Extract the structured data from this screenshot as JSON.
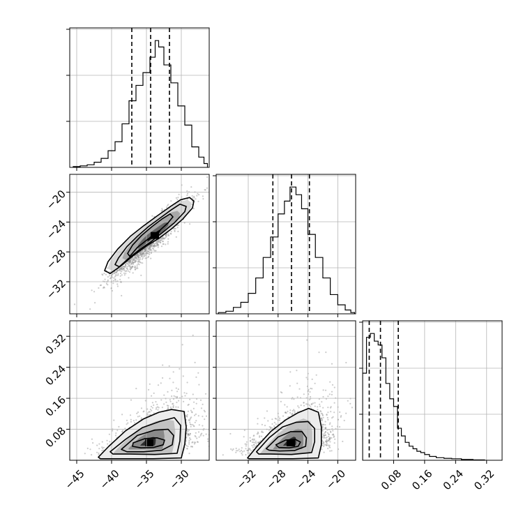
{
  "chart_data": {
    "type": "corner",
    "title": "",
    "grid": true,
    "parameters": [
      {
        "xlim": [
          -46,
          -26
        ],
        "ticks": [
          -45,
          -40,
          -35,
          -30
        ],
        "tick_labels": [
          "−45",
          "−40",
          "−35",
          "−30"
        ],
        "quantiles": [
          -37.1,
          -34.4,
          -31.7
        ],
        "hist": [
          {
            "x": -45.0,
            "count": 0.006
          },
          {
            "x": -44.0,
            "count": 0.012
          },
          {
            "x": -43.0,
            "count": 0.02
          },
          {
            "x": -42.0,
            "count": 0.04
          },
          {
            "x": -41.0,
            "count": 0.07
          },
          {
            "x": -40.0,
            "count": 0.13
          },
          {
            "x": -39.0,
            "count": 0.2
          },
          {
            "x": -38.0,
            "count": 0.34
          },
          {
            "x": -37.0,
            "count": 0.52
          },
          {
            "x": -36.0,
            "count": 0.64
          },
          {
            "x": -35.0,
            "count": 0.74
          },
          {
            "x": -34.0,
            "count": 0.86
          },
          {
            "x": -33.5,
            "count": 0.99
          },
          {
            "x": -33.0,
            "count": 0.94
          },
          {
            "x": -32.0,
            "count": 0.8
          },
          {
            "x": -31.0,
            "count": 0.66
          },
          {
            "x": -30.0,
            "count": 0.48
          },
          {
            "x": -29.0,
            "count": 0.33
          },
          {
            "x": -28.0,
            "count": 0.16
          },
          {
            "x": -27.0,
            "count": 0.08
          },
          {
            "x": -26.5,
            "count": 0.03
          }
        ]
      },
      {
        "xlim": [
          -36.3,
          -17.6
        ],
        "ticks": [
          -32,
          -28,
          -24,
          -20
        ],
        "tick_labels": [
          "−32",
          "−28",
          "−24",
          "−20"
        ],
        "quantiles": [
          -28.7,
          -26.2,
          -23.8
        ],
        "hist": [
          {
            "x": -35.5,
            "count": 0.01
          },
          {
            "x": -34.5,
            "count": 0.02
          },
          {
            "x": -33.5,
            "count": 0.05
          },
          {
            "x": -32.5,
            "count": 0.09
          },
          {
            "x": -31.5,
            "count": 0.16
          },
          {
            "x": -30.5,
            "count": 0.28
          },
          {
            "x": -29.5,
            "count": 0.44
          },
          {
            "x": -28.5,
            "count": 0.6
          },
          {
            "x": -27.5,
            "count": 0.78
          },
          {
            "x": -26.8,
            "count": 0.88
          },
          {
            "x": -26.0,
            "count": 0.99
          },
          {
            "x": -25.2,
            "count": 0.93
          },
          {
            "x": -24.5,
            "count": 0.82
          },
          {
            "x": -23.5,
            "count": 0.62
          },
          {
            "x": -22.5,
            "count": 0.44
          },
          {
            "x": -21.5,
            "count": 0.28
          },
          {
            "x": -20.5,
            "count": 0.15
          },
          {
            "x": -19.5,
            "count": 0.07
          },
          {
            "x": -18.5,
            "count": 0.03
          },
          {
            "x": -18.0,
            "count": 0.01
          }
        ]
      },
      {
        "xlim": [
          0.0,
          0.36
        ],
        "ticks": [
          0.08,
          0.16,
          0.24,
          0.32
        ],
        "tick_labels": [
          "0.08",
          "0.16",
          "0.24",
          "0.32"
        ],
        "quantiles": [
          0.017,
          0.046,
          0.092
        ],
        "hist": [
          {
            "x": 0.005,
            "count": 0.68
          },
          {
            "x": 0.015,
            "count": 0.96
          },
          {
            "x": 0.025,
            "count": 0.99
          },
          {
            "x": 0.035,
            "count": 0.93
          },
          {
            "x": 0.045,
            "count": 0.9
          },
          {
            "x": 0.055,
            "count": 0.8
          },
          {
            "x": 0.065,
            "count": 0.6
          },
          {
            "x": 0.075,
            "count": 0.48
          },
          {
            "x": 0.085,
            "count": 0.42
          },
          {
            "x": 0.095,
            "count": 0.25
          },
          {
            "x": 0.105,
            "count": 0.19
          },
          {
            "x": 0.115,
            "count": 0.14
          },
          {
            "x": 0.125,
            "count": 0.11
          },
          {
            "x": 0.135,
            "count": 0.09
          },
          {
            "x": 0.145,
            "count": 0.07
          },
          {
            "x": 0.155,
            "count": 0.06
          },
          {
            "x": 0.165,
            "count": 0.045
          },
          {
            "x": 0.18,
            "count": 0.03
          },
          {
            "x": 0.2,
            "count": 0.02
          },
          {
            "x": 0.22,
            "count": 0.015
          },
          {
            "x": 0.24,
            "count": 0.012
          },
          {
            "x": 0.27,
            "count": 0.006
          },
          {
            "x": 0.3,
            "count": 0.003
          }
        ]
      }
    ],
    "pairs": [
      {
        "row": 1,
        "col": 0,
        "mean": [
          -34.4,
          -26.2
        ],
        "sd": [
          2.7,
          2.5
        ],
        "rho": 0.92,
        "peak": [
          -33.8,
          -25.8
        ],
        "contours": [
          {
            "level": 0.4,
            "points": [
              [
                -37.4,
                -28.6
              ],
              [
                -36.3,
                -27.4
              ],
              [
                -34.8,
                -26.3
              ],
              [
                -33.3,
                -25.3
              ],
              [
                -31.9,
                -24.1
              ],
              [
                -31.2,
                -23.3
              ],
              [
                -31.6,
                -22.9
              ],
              [
                -32.8,
                -23.6
              ],
              [
                -34.2,
                -24.6
              ],
              [
                -35.7,
                -25.8
              ],
              [
                -37.0,
                -27.1
              ],
              [
                -37.7,
                -28.2
              ]
            ]
          },
          {
            "level": 0.8,
            "points": [
              [
                -38.9,
                -30.0
              ],
              [
                -37.6,
                -28.9
              ],
              [
                -36.0,
                -27.7
              ],
              [
                -34.3,
                -26.6
              ],
              [
                -32.7,
                -25.4
              ],
              [
                -31.0,
                -24.1
              ],
              [
                -29.5,
                -22.6
              ],
              [
                -29.3,
                -21.9
              ],
              [
                -30.2,
                -21.6
              ],
              [
                -31.5,
                -22.4
              ],
              [
                -33.1,
                -23.5
              ],
              [
                -34.7,
                -24.6
              ],
              [
                -36.3,
                -25.9
              ],
              [
                -37.8,
                -27.3
              ],
              [
                -39.0,
                -28.8
              ],
              [
                -39.5,
                -29.7
              ]
            ]
          },
          {
            "level": 1.2,
            "points": [
              [
                -40.2,
                -30.9
              ],
              [
                -38.7,
                -29.9
              ],
              [
                -36.9,
                -28.5
              ],
              [
                -35.0,
                -27.2
              ],
              [
                -33.1,
                -26.1
              ],
              [
                -31.4,
                -24.9
              ],
              [
                -29.8,
                -23.6
              ],
              [
                -28.4,
                -22.1
              ],
              [
                -28.2,
                -21.2
              ],
              [
                -28.8,
                -20.7
              ],
              [
                -30.1,
                -21.0
              ],
              [
                -31.7,
                -22.0
              ],
              [
                -33.5,
                -23.2
              ],
              [
                -35.4,
                -24.5
              ],
              [
                -37.3,
                -25.9
              ],
              [
                -39.1,
                -27.6
              ],
              [
                -40.5,
                -29.3
              ],
              [
                -41.0,
                -30.5
              ]
            ]
          }
        ],
        "ellipses": [
          {
            "k": 1.6,
            "shade": "#d8d8d8"
          },
          {
            "k": 1.1,
            "shade": "#a8a8a8"
          },
          {
            "k": 0.6,
            "shade": "#666666"
          },
          {
            "k": 0.25,
            "shade": "#111111"
          }
        ],
        "xlim": [
          -46,
          -26
        ],
        "ylim": [
          -36.3,
          -17.6
        ],
        "yticks": [
          -32,
          -28,
          -24,
          -20
        ],
        "ytick_labels": [
          "−32",
          "−28",
          "−24",
          "−20"
        ]
      },
      {
        "row": 2,
        "col": 0,
        "mean": [
          -33.8,
          0.05
        ],
        "sd": [
          3.0,
          0.05
        ],
        "rho": 0.45,
        "peak": [
          -34.6,
          0.045
        ],
        "contours": [
          {
            "level": 0.4,
            "points": [
              [
                -36.9,
                0.045
              ],
              [
                -35.2,
                0.056
              ],
              [
                -33.5,
                0.058
              ],
              [
                -32.4,
                0.052
              ],
              [
                -32.6,
                0.04
              ],
              [
                -34.0,
                0.033
              ],
              [
                -35.8,
                0.032
              ],
              [
                -37.0,
                0.036
              ]
            ]
          },
          {
            "level": 0.8,
            "points": [
              [
                -38.6,
                0.028
              ],
              [
                -36.3,
                0.064
              ],
              [
                -33.8,
                0.078
              ],
              [
                -31.9,
                0.08
              ],
              [
                -31.1,
                0.064
              ],
              [
                -31.3,
                0.04
              ],
              [
                -32.8,
                0.026
              ],
              [
                -35.4,
                0.022
              ],
              [
                -37.8,
                0.022
              ]
            ]
          },
          {
            "level": 1.2,
            "points": [
              [
                -40.2,
                0.022
              ],
              [
                -38.0,
                0.054
              ],
              [
                -35.6,
                0.084
              ],
              [
                -33.1,
                0.1
              ],
              [
                -31.0,
                0.11
              ],
              [
                -30.1,
                0.09
              ],
              [
                -30.2,
                0.05
              ],
              [
                -30.6,
                0.018
              ],
              [
                -33.8,
                0.015
              ],
              [
                -37.4,
                0.016
              ],
              [
                -39.8,
                0.016
              ]
            ]
          },
          {
            "level": 1.6,
            "points": [
              [
                -41.9,
                0.008
              ],
              [
                -40.4,
                0.036
              ],
              [
                -38.0,
                0.076
              ],
              [
                -35.4,
                0.107
              ],
              [
                -33.2,
                0.124
              ],
              [
                -31.4,
                0.131
              ],
              [
                -29.6,
                0.126
              ],
              [
                -29.3,
                0.086
              ],
              [
                -29.5,
                0.042
              ],
              [
                -30.0,
                0.006
              ],
              [
                -34.0,
                0.004
              ],
              [
                -38.5,
                0.004
              ],
              [
                -41.6,
                0.004
              ]
            ]
          }
        ],
        "ellipses": [
          {
            "k": 1.7,
            "shade": "#ececec"
          },
          {
            "k": 1.2,
            "shade": "#c2c2c2"
          },
          {
            "k": 0.7,
            "shade": "#8a8a8a"
          },
          {
            "k": 0.3,
            "shade": "#2e2e2e"
          }
        ],
        "xlim": [
          -46,
          -26
        ],
        "ylim": [
          0.0,
          0.36
        ],
        "yticks": [
          0.08,
          0.16,
          0.24,
          0.32
        ],
        "ytick_labels": [
          "0.08",
          "0.16",
          "0.24",
          "0.32"
        ]
      },
      {
        "row": 2,
        "col": 1,
        "mean": [
          -26.0,
          0.05
        ],
        "sd": [
          2.6,
          0.05
        ],
        "rho": 0.45,
        "peak": [
          -26.3,
          0.045
        ],
        "contours": [
          {
            "level": 0.4,
            "points": [
              [
                -28.3,
                0.04
              ],
              [
                -27.0,
                0.052
              ],
              [
                -25.7,
                0.054
              ],
              [
                -25.0,
                0.047
              ],
              [
                -25.3,
                0.036
              ],
              [
                -26.5,
                0.032
              ],
              [
                -27.9,
                0.033
              ]
            ]
          },
          {
            "level": 0.8,
            "points": [
              [
                -29.6,
                0.03
              ],
              [
                -28.0,
                0.06
              ],
              [
                -26.3,
                0.074
              ],
              [
                -24.8,
                0.074
              ],
              [
                -24.2,
                0.058
              ],
              [
                -24.3,
                0.036
              ],
              [
                -25.8,
                0.025
              ],
              [
                -27.8,
                0.024
              ],
              [
                -29.2,
                0.026
              ]
            ]
          },
          {
            "level": 1.2,
            "points": [
              [
                -30.9,
                0.022
              ],
              [
                -29.2,
                0.058
              ],
              [
                -27.4,
                0.086
              ],
              [
                -25.6,
                0.098
              ],
              [
                -24.0,
                0.1
              ],
              [
                -23.1,
                0.082
              ],
              [
                -23.1,
                0.048
              ],
              [
                -23.5,
                0.02
              ],
              [
                -26.2,
                0.015
              ],
              [
                -29.0,
                0.016
              ],
              [
                -30.6,
                0.016
              ]
            ]
          },
          {
            "level": 1.6,
            "points": [
              [
                -32.1,
                0.006
              ],
              [
                -30.9,
                0.034
              ],
              [
                -29.0,
                0.074
              ],
              [
                -27.0,
                0.104
              ],
              [
                -25.3,
                0.123
              ],
              [
                -23.9,
                0.134
              ],
              [
                -22.6,
                0.124
              ],
              [
                -22.2,
                0.086
              ],
              [
                -22.2,
                0.04
              ],
              [
                -22.6,
                0.006
              ],
              [
                -26.0,
                0.004
              ],
              [
                -29.5,
                0.004
              ],
              [
                -31.9,
                0.004
              ]
            ]
          }
        ],
        "ellipses": [
          {
            "k": 1.7,
            "shade": "#ececec"
          },
          {
            "k": 1.2,
            "shade": "#c2c2c2"
          },
          {
            "k": 0.7,
            "shade": "#8a8a8a"
          },
          {
            "k": 0.3,
            "shade": "#2e2e2e"
          }
        ],
        "xlim": [
          -36.3,
          -17.6
        ],
        "ylim": [
          0.0,
          0.36
        ]
      }
    ]
  }
}
